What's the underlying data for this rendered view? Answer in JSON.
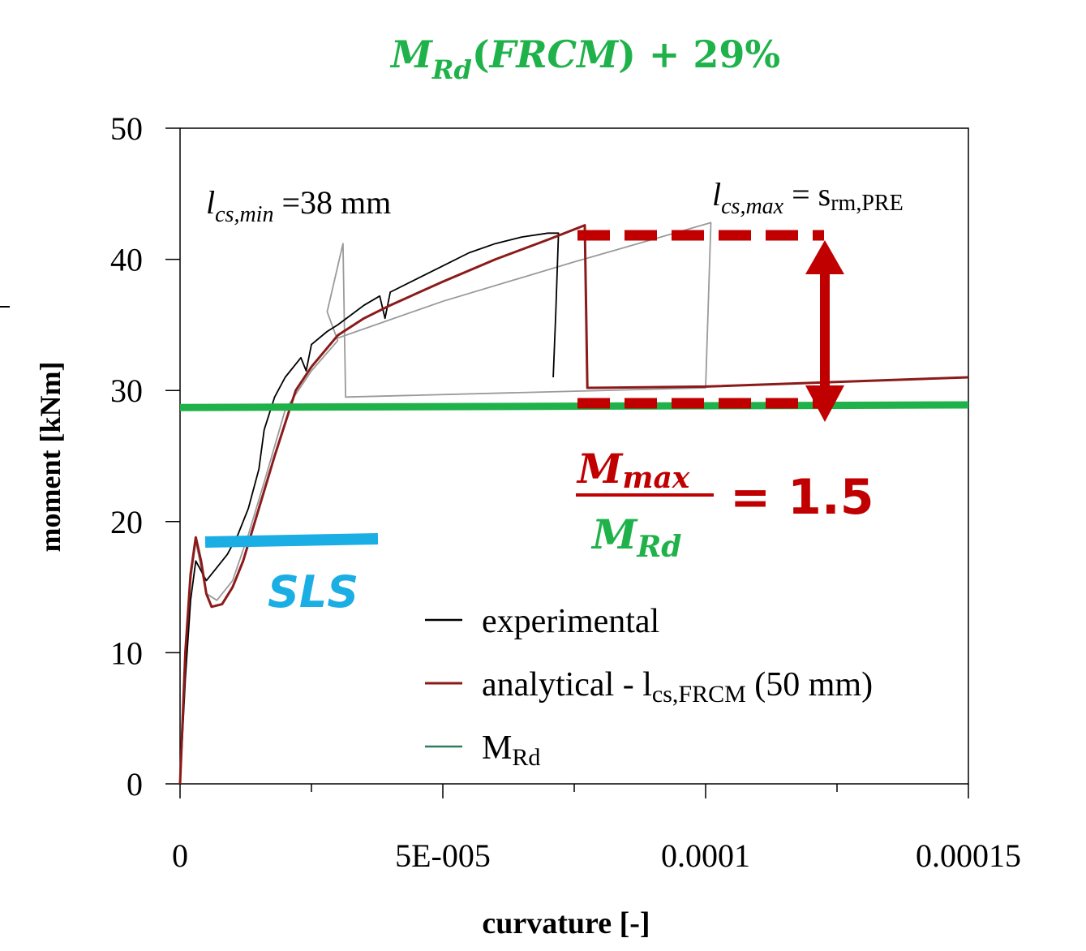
{
  "colors": {
    "experimental": "#000000",
    "analytical": "#8b1a1a",
    "mrd_legend": "#2e7d5b",
    "mrd_line": "#1fb24a",
    "annotation_red": "#c00000",
    "annotation_green": "#1fb24a",
    "sls": "#1aaee5",
    "grey_curve": "#9a9a9a"
  },
  "annotations": {
    "top_title": "M_Rd(FRCM) + 29%",
    "lcs_min": "l_cs,min =38 mm",
    "lcs_max": "l_cs,max = s_rm,PRE",
    "ratio_num": "M_max",
    "ratio_den": "M_Rd",
    "ratio_value": "= 1.5",
    "sls": "SLS"
  },
  "chart_data": {
    "type": "line",
    "xlabel": "curvature [-]",
    "ylabel": "moment [kNm]",
    "xlim": [
      0,
      0.00015
    ],
    "ylim": [
      0,
      50
    ],
    "x_ticks": [
      0,
      5e-05,
      0.0001,
      0.00015
    ],
    "x_tick_labels": [
      "0",
      "5E-005",
      "0.0001",
      "0.00015"
    ],
    "y_ticks": [
      0,
      10,
      20,
      30,
      40,
      50
    ],
    "y_tick_labels": [
      "0",
      "10",
      "20",
      "30",
      "40",
      "50"
    ],
    "legend_position": "bottom-right",
    "legend": [
      {
        "key": "experimental",
        "label": "experimental"
      },
      {
        "key": "analytical",
        "label": "analytical - l_cs,FRCM (50 mm)"
      },
      {
        "key": "mrd",
        "label": "M_Rd"
      }
    ],
    "series": [
      {
        "name": "experimental",
        "color": "#000000",
        "points": [
          [
            0,
            0
          ],
          [
            1e-06,
            8
          ],
          [
            2e-06,
            14
          ],
          [
            3e-06,
            17
          ],
          [
            5e-06,
            15.5
          ],
          [
            7e-06,
            16.5
          ],
          [
            9e-06,
            17.5
          ],
          [
            1.1e-05,
            19
          ],
          [
            1.3e-05,
            21
          ],
          [
            1.5e-05,
            24
          ],
          [
            1.6e-05,
            27
          ],
          [
            1.8e-05,
            29.5
          ],
          [
            2e-05,
            31
          ],
          [
            2.3e-05,
            32.5
          ],
          [
            2.4e-05,
            31.5
          ],
          [
            2.5e-05,
            33.5
          ],
          [
            2.8e-05,
            34.5
          ],
          [
            3e-05,
            35
          ],
          [
            3.5e-05,
            36.5
          ],
          [
            3.8e-05,
            37.2
          ],
          [
            3.9e-05,
            35.5
          ],
          [
            4e-05,
            37.5
          ],
          [
            4.5e-05,
            38.5
          ],
          [
            5e-05,
            39.5
          ],
          [
            5.5e-05,
            40.5
          ],
          [
            6e-05,
            41.2
          ],
          [
            6.5e-05,
            41.7
          ],
          [
            7e-05,
            42
          ],
          [
            7.2e-05,
            42
          ],
          [
            7.15e-05,
            36
          ],
          [
            7.1e-05,
            31
          ]
        ]
      },
      {
        "name": "analytical - l_cs,FRCM (50 mm)",
        "color": "#8b1a1a",
        "points": [
          [
            0,
            0
          ],
          [
            1e-06,
            10
          ],
          [
            2e-06,
            16
          ],
          [
            3e-06,
            18.8
          ],
          [
            4e-06,
            17
          ],
          [
            5e-06,
            14.5
          ],
          [
            6e-06,
            13.5
          ],
          [
            8e-06,
            13.7
          ],
          [
            1e-05,
            15
          ],
          [
            1.2e-05,
            17
          ],
          [
            1.5e-05,
            21
          ],
          [
            1.8e-05,
            25
          ],
          [
            2.2e-05,
            30
          ],
          [
            2.5e-05,
            31.8
          ],
          [
            3e-05,
            34.2
          ],
          [
            3.5e-05,
            35.5
          ],
          [
            4e-05,
            36.5
          ],
          [
            5e-05,
            38.3
          ],
          [
            6e-05,
            40
          ],
          [
            7e-05,
            41.5
          ],
          [
            7.7e-05,
            42.6
          ],
          [
            7.75e-05,
            30.2
          ],
          [
            0.0001,
            30.3
          ],
          [
            0.00015,
            31
          ]
        ]
      },
      {
        "name": "",
        "color": "#9a9a9a",
        "points": [
          [
            0,
            0
          ],
          [
            1e-06,
            9
          ],
          [
            2e-06,
            15.5
          ],
          [
            3e-06,
            18.5
          ],
          [
            4e-06,
            16.5
          ],
          [
            5e-06,
            14.5
          ],
          [
            7e-06,
            14
          ],
          [
            1e-05,
            15.5
          ],
          [
            1.3e-05,
            19
          ],
          [
            1.6e-05,
            23
          ],
          [
            2e-05,
            28.5
          ],
          [
            2.5e-05,
            31.5
          ],
          [
            3e-05,
            33.8
          ],
          [
            2.8e-05,
            36
          ],
          [
            3.1e-05,
            41.2
          ],
          [
            3.15e-05,
            29.5
          ],
          [
            0.0001,
            30.2
          ],
          [
            0.000101,
            42.8
          ],
          [
            7.5e-05,
            39.8
          ],
          [
            5e-05,
            36.8
          ],
          [
            3e-05,
            34
          ]
        ]
      },
      {
        "name": "M_Rd",
        "color": "#1fb24a",
        "points": [
          [
            0,
            28.7
          ],
          [
            0.00015,
            28.9
          ]
        ]
      }
    ]
  }
}
